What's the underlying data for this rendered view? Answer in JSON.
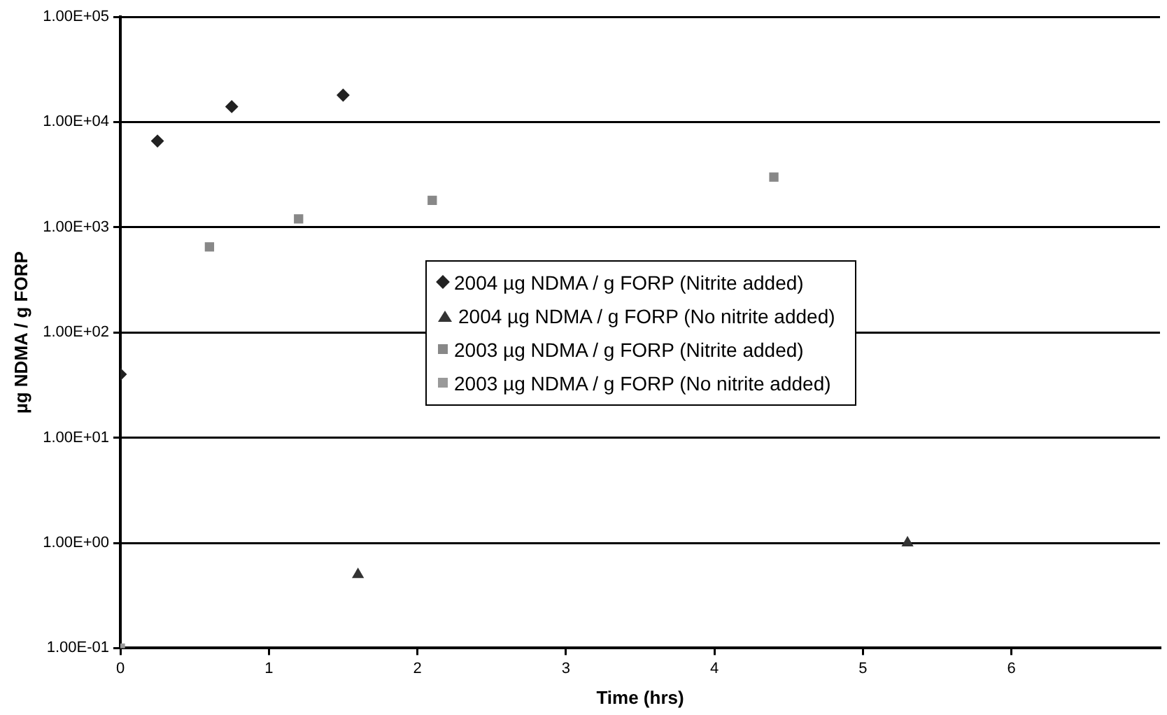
{
  "chart_data": {
    "type": "scatter",
    "xlabel": "Time (hrs)",
    "ylabel": "µg NDMA / g FORP",
    "log": "y",
    "grid": "y",
    "legend": "center",
    "xlim": [
      0,
      7
    ],
    "xticks": [
      0,
      1,
      2,
      3,
      4,
      5,
      6
    ],
    "ylim": [
      0.1,
      100000
    ],
    "yticks": [
      {
        "value": 0.1,
        "label": "1.00E-01"
      },
      {
        "value": 1,
        "label": "1.00E+00"
      },
      {
        "value": 10,
        "label": "1.00E+01"
      },
      {
        "value": 100,
        "label": "1.00E+02"
      },
      {
        "value": 1000,
        "label": "1.00E+03"
      },
      {
        "value": 10000,
        "label": "1.00E+04"
      },
      {
        "value": 100000,
        "label": "1.00E+05"
      }
    ],
    "series": [
      {
        "name": "2004 µg NDMA / g FORP (Nitrite added)",
        "color": "#222222",
        "marker": "diamond",
        "x": [
          0,
          0.25,
          0.75,
          1.5
        ],
        "values": [
          40,
          6600,
          14000,
          18000
        ]
      },
      {
        "name": "2004 µg NDMA / g FORP (No nitrite added)",
        "color": "#333333",
        "marker": "triangle",
        "x": [
          1.6,
          5.3
        ],
        "values": [
          0.5,
          1
        ]
      },
      {
        "name": "2003 µg NDMA / g FORP (Nitrite added)",
        "color": "#888888",
        "marker": "square",
        "x": [
          0.6,
          1.2,
          2.1,
          4.4
        ],
        "values": [
          650,
          1200,
          1800,
          3000
        ]
      },
      {
        "name": "2003 µg NDMA / g FORP (No nitrite added)",
        "color": "#999999",
        "marker": "square",
        "x": [
          0
        ],
        "values": [
          0.1
        ]
      }
    ]
  }
}
